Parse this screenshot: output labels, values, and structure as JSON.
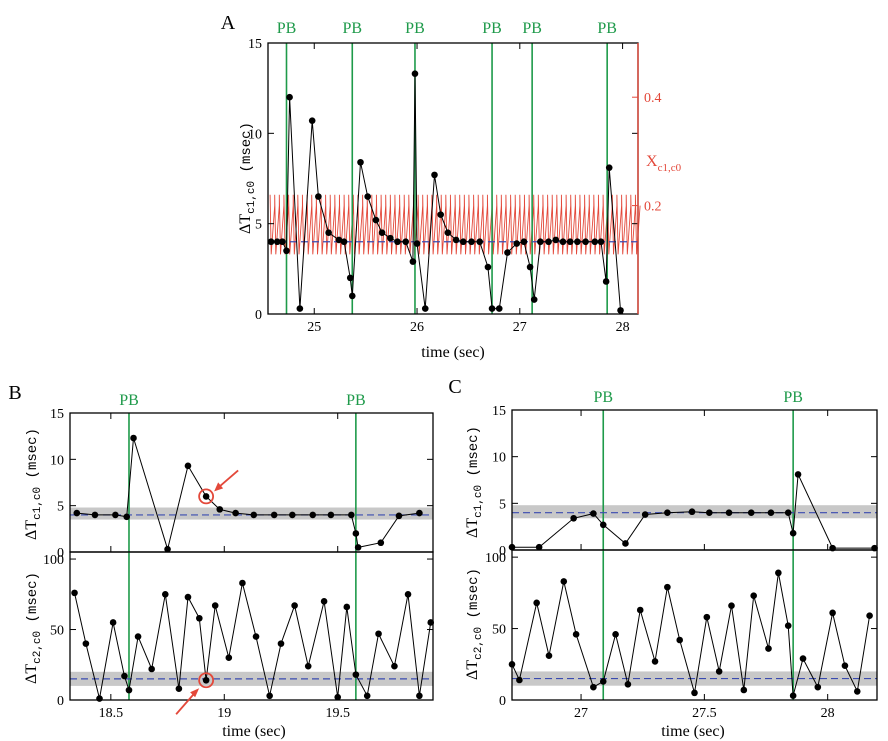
{
  "colors": {
    "pb": "#1e9a4a",
    "red": "#e3483a",
    "blue": "#3a4bb0",
    "band": "#c8c8c8"
  },
  "pb_label": "PB",
  "time_label": "time (sec)",
  "chart_data": [
    {
      "panel": "A",
      "type": "line",
      "xlabel": "time (sec)",
      "ylabel": "ΔT c1,c0 (msec)",
      "y2label": "X c1,c0",
      "xlim": [
        24.55,
        28.15
      ],
      "ylim": [
        0,
        15
      ],
      "y2lim": [
        0,
        0.5
      ],
      "x_ticks": [
        25,
        26,
        27,
        28
      ],
      "y_ticks": [
        0,
        5,
        10,
        15
      ],
      "y2_ticks": [
        0.2,
        0.4
      ],
      "pb_times": [
        24.73,
        25.37,
        25.98,
        26.73,
        27.12,
        27.85
      ],
      "mean_line": 4.0,
      "series": [
        {
          "values_x": [
            24.58,
            24.64,
            24.69,
            24.73,
            24.76,
            24.86,
            24.98,
            25.04,
            25.14,
            25.24,
            25.29,
            25.35,
            25.37,
            25.45,
            25.52,
            25.6,
            25.66,
            25.74,
            25.81,
            25.89,
            25.96,
            25.98,
            26.0,
            26.08,
            26.17,
            26.23,
            26.3,
            26.38,
            26.45,
            26.53,
            26.61,
            26.69,
            26.73,
            26.8,
            26.88,
            26.97,
            27.04,
            27.1,
            27.14,
            27.2,
            27.28,
            27.35,
            27.42,
            27.49,
            27.56,
            27.64,
            27.73,
            27.79,
            27.84,
            27.87,
            27.98
          ],
          "values_y": [
            4.0,
            4.0,
            4.0,
            3.5,
            12.0,
            0.3,
            10.7,
            6.5,
            4.5,
            4.1,
            4.0,
            2.0,
            1.0,
            8.4,
            6.5,
            5.2,
            4.5,
            4.2,
            4.0,
            4.0,
            2.9,
            13.3,
            3.9,
            0.3,
            7.7,
            5.5,
            4.5,
            4.1,
            4.0,
            4.0,
            4.0,
            2.6,
            0.3,
            0.3,
            3.4,
            3.9,
            4.0,
            2.6,
            0.8,
            4.0,
            4.0,
            4.1,
            4.0,
            4.0,
            4.0,
            4.0,
            4.0,
            4.0,
            1.8,
            8.1,
            0.2
          ]
        }
      ]
    },
    {
      "panel": "B",
      "type": "line",
      "xlabel": "time (sec)",
      "xlim": [
        18.32,
        19.92
      ],
      "x_ticks": [
        18.5,
        19,
        19.5
      ],
      "pb_times": [
        18.58,
        19.58
      ],
      "top": {
        "ylabel": "ΔT c1,c0 (msec)",
        "ylim": [
          0,
          15
        ],
        "y_ticks": [
          0,
          5,
          10,
          15
        ],
        "mean_line": 4.0,
        "band": [
          3.5,
          4.8
        ],
        "marked_point": {
          "x": 18.92,
          "y": 6.0
        },
        "values_x": [
          18.35,
          18.43,
          18.52,
          18.57,
          18.6,
          18.75,
          18.84,
          18.92,
          18.98,
          19.05,
          19.13,
          19.22,
          19.3,
          19.39,
          19.47,
          19.56,
          19.58,
          19.59,
          19.69,
          19.77,
          19.86
        ],
        "values_y": [
          4.2,
          4.0,
          4.0,
          3.8,
          12.3,
          0.3,
          9.3,
          6.0,
          4.6,
          4.2,
          4.0,
          4.0,
          4.0,
          4.0,
          4.0,
          4.0,
          2.0,
          0.5,
          1.0,
          3.9,
          4.2
        ]
      },
      "bottom": {
        "ylabel": "ΔT c2,c0 (msec)",
        "ylim": [
          0,
          105
        ],
        "y_ticks": [
          0,
          50,
          100
        ],
        "mean_line": 15,
        "band": [
          10,
          20
        ],
        "marked_point": {
          "x": 18.92,
          "y": 14
        },
        "values_x": [
          18.34,
          18.39,
          18.45,
          18.51,
          18.56,
          18.58,
          18.62,
          18.68,
          18.74,
          18.8,
          18.84,
          18.89,
          18.92,
          18.96,
          19.02,
          19.08,
          19.14,
          19.2,
          19.25,
          19.31,
          19.37,
          19.44,
          19.5,
          19.54,
          19.58,
          19.63,
          19.68,
          19.75,
          19.81,
          19.86,
          19.91
        ],
        "values_y": [
          76,
          40,
          1,
          55,
          17,
          7,
          45,
          22,
          75,
          8,
          73,
          58,
          14,
          67,
          30,
          83,
          45,
          3,
          40,
          67,
          24,
          70,
          2,
          66,
          18,
          3,
          47,
          24,
          75,
          3,
          55
        ]
      }
    },
    {
      "panel": "C",
      "type": "line",
      "xlabel": "time (sec)",
      "xlim": [
        26.72,
        28.2
      ],
      "x_ticks": [
        27,
        27.5,
        28
      ],
      "pb_times": [
        27.09,
        27.86
      ],
      "top": {
        "ylabel": "ΔT c1,c0 (msec)",
        "ylim": [
          0,
          15
        ],
        "y_ticks": [
          0,
          5,
          10,
          15
        ],
        "mean_line": 4.0,
        "band": [
          3.4,
          4.8
        ],
        "values_x": [
          26.72,
          26.83,
          26.97,
          27.05,
          27.09,
          27.18,
          27.26,
          27.35,
          27.45,
          27.52,
          27.6,
          27.69,
          27.77,
          27.84,
          27.86,
          27.88,
          28.02,
          28.19
        ],
        "values_y": [
          0.3,
          0.3,
          3.4,
          3.9,
          2.7,
          0.7,
          3.8,
          4.0,
          4.1,
          4.0,
          4.0,
          4.0,
          4.0,
          4.0,
          1.8,
          8.1,
          0.2,
          0.2
        ]
      },
      "bottom": {
        "ylabel": "ΔT c2,c0 (msec)",
        "ylim": [
          0,
          105
        ],
        "y_ticks": [
          0,
          50,
          100
        ],
        "mean_line": 15,
        "band": [
          10,
          20
        ],
        "values_x": [
          26.72,
          26.75,
          26.82,
          26.87,
          26.93,
          26.98,
          27.05,
          27.09,
          27.14,
          27.19,
          27.24,
          27.3,
          27.35,
          27.4,
          27.46,
          27.51,
          27.56,
          27.61,
          27.66,
          27.7,
          27.76,
          27.8,
          27.84,
          27.86,
          27.9,
          27.96,
          28.02,
          28.07,
          28.12,
          28.17
        ],
        "values_y": [
          25,
          14,
          68,
          31,
          83,
          46,
          9,
          13,
          46,
          11,
          63,
          27,
          79,
          42,
          5,
          58,
          20,
          66,
          7,
          73,
          36,
          89,
          52,
          3,
          29,
          9,
          61,
          24,
          6,
          59
        ]
      }
    }
  ]
}
